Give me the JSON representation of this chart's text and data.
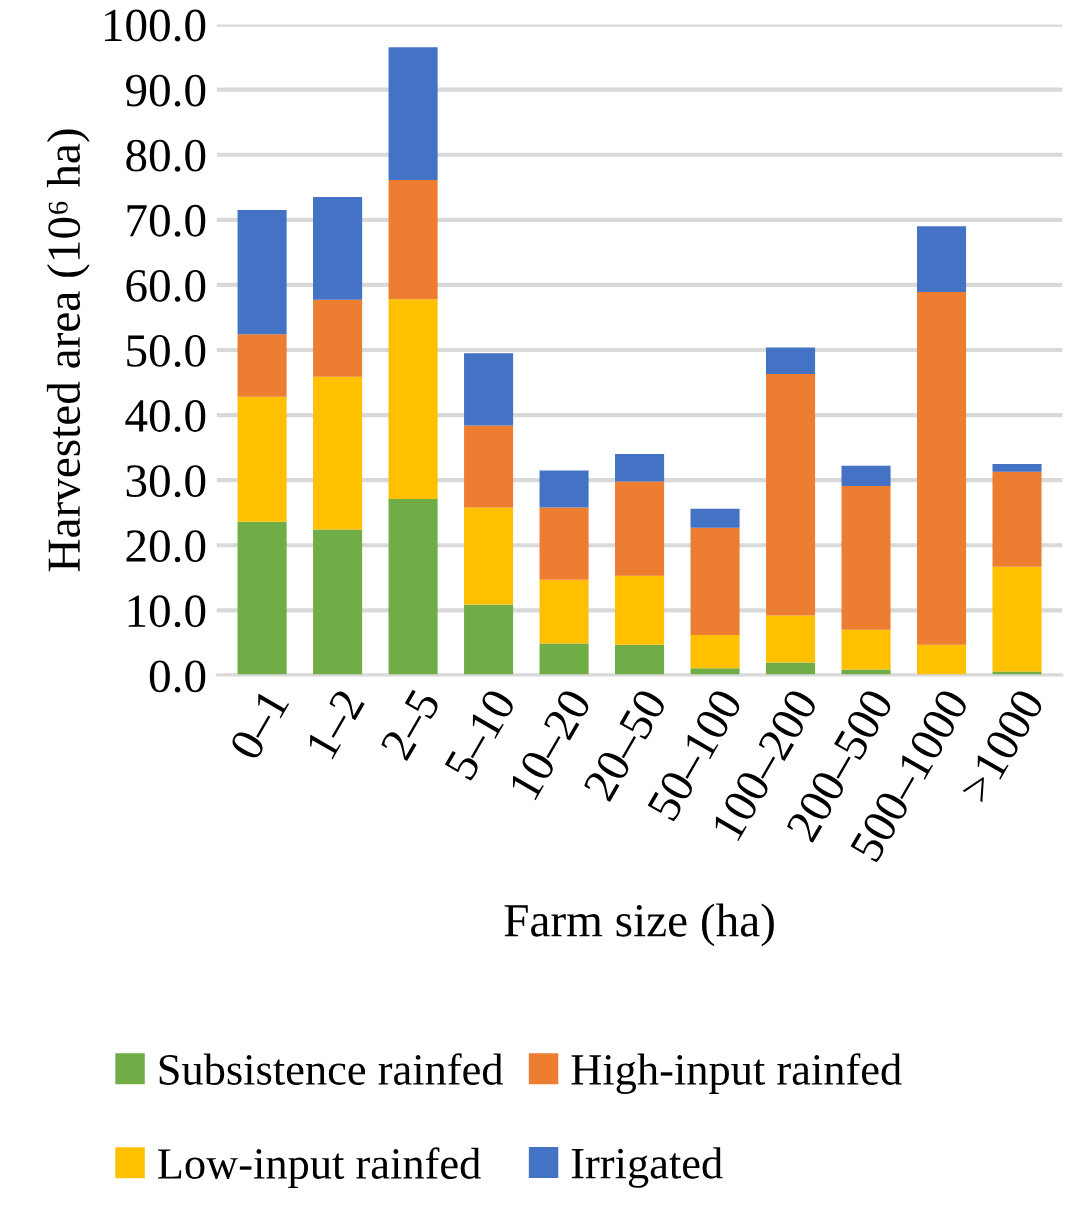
{
  "chart_data": {
    "type": "bar",
    "stacked": true,
    "xlabel": "Farm size (ha)",
    "ylabel": "Harvested area (10⁶ ha)",
    "categories": [
      "0–1",
      "1–2",
      "2–5",
      "5–10",
      "10–20",
      "20–50",
      "50–100",
      "100–200",
      "200–500",
      "500–1000",
      ">1000"
    ],
    "series": [
      {
        "name": "Subsistence rainfed",
        "color": "#70ad47",
        "values": [
          23.6,
          22.4,
          27.1,
          10.9,
          4.9,
          4.7,
          1.1,
          2.0,
          0.9,
          null,
          0.6
        ]
      },
      {
        "name": "Low-input rainfed",
        "color": "#ffc000",
        "values": [
          19.2,
          23.5,
          30.7,
          14.9,
          9.8,
          10.6,
          5.1,
          7.2,
          6.1,
          4.7,
          16.1
        ]
      },
      {
        "name": "High-input rainfed",
        "color": "#ed7d31",
        "values": [
          9.6,
          11.8,
          18.3,
          12.6,
          11.1,
          14.5,
          16.5,
          37.1,
          22.1,
          54.2,
          14.6
        ]
      },
      {
        "name": "Irrigated",
        "color": "#4472c4",
        "values": [
          19.1,
          15.8,
          20.4,
          11.1,
          5.7,
          4.2,
          2.9,
          4.1,
          3.1,
          10.1,
          1.2
        ]
      }
    ],
    "ylim": [
      0,
      100
    ],
    "yticks": [
      {
        "value": 0,
        "label": "0.0"
      },
      {
        "value": 10,
        "label": "10.0"
      },
      {
        "value": 20,
        "label": "20.0"
      },
      {
        "value": 30,
        "label": "30.0"
      },
      {
        "value": 40,
        "label": "40.0"
      },
      {
        "value": 50,
        "label": "50.0"
      },
      {
        "value": 60,
        "label": "60.0"
      },
      {
        "value": 70,
        "label": "70.0"
      },
      {
        "value": 80,
        "label": "80.0"
      },
      {
        "value": 90,
        "label": "90.0"
      },
      {
        "value": 100,
        "label": "100.0"
      }
    ],
    "grid": "y",
    "legend": "bottom"
  }
}
